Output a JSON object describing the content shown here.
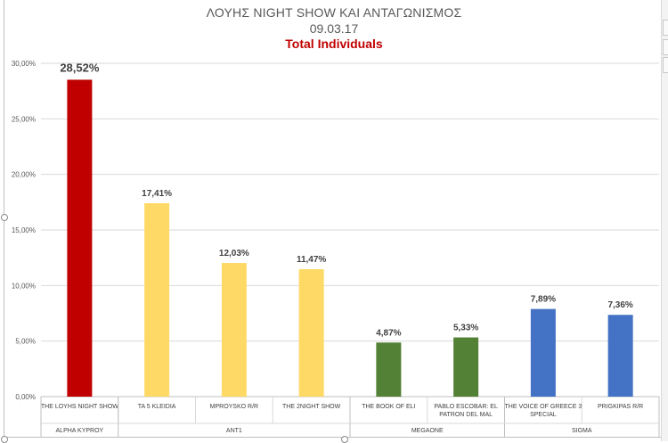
{
  "chart_data": {
    "type": "bar",
    "title": "ΛΟΥΗΣ NIGHT SHOW ΚΑΙ ΑΝΤΑΓΩΝΙΣΜΟΣ",
    "subtitle_date": "09.03.17",
    "subtitle": "Total Individuals",
    "ylim": [
      0,
      30
    ],
    "yticks": [
      "0,00%",
      "5,00%",
      "10,00%",
      "15,00%",
      "20,00%",
      "25,00%",
      "30,00%"
    ],
    "grid": true,
    "categories": [
      "THE LOYHS NIGHT SHOW",
      "TA 5 KLEIDIA",
      "MPROYSKO R/R",
      "THE 2NIGHT SHOW",
      "THE BOOK OF ELI",
      "PABLO ESCOBAR: EL PATRON DEL MAL",
      "THE VOICE OF GREECE 3 SPECIAL",
      "PRIGKIPAS R/R"
    ],
    "values": [
      28.52,
      17.41,
      12.03,
      11.47,
      4.87,
      5.33,
      7.89,
      7.36
    ],
    "data_labels": [
      "28,52%",
      "17,41%",
      "12,03%",
      "11,47%",
      "4,87%",
      "5,33%",
      "7,89%",
      "7,36%"
    ],
    "groups": [
      {
        "name": "ALPHA KYPROY",
        "count": 1
      },
      {
        "name": "ANT1",
        "count": 3
      },
      {
        "name": "MEGAONE",
        "count": 2
      },
      {
        "name": "SIGMA",
        "count": 2
      }
    ],
    "colors": [
      "#c00000",
      "#ffd966",
      "#ffd966",
      "#ffd966",
      "#538135",
      "#538135",
      "#4472c4",
      "#4472c4"
    ],
    "gridline_color": "#d9d9d9"
  }
}
